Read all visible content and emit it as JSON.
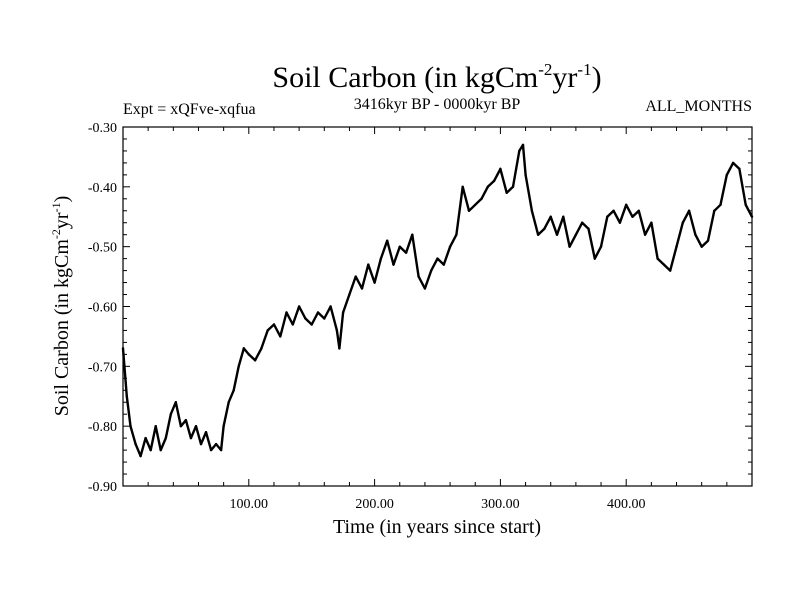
{
  "chart_data": {
    "type": "line",
    "title": {
      "base": "Soil Carbon (in kgCm",
      "exp1": "-2",
      "mid": "yr",
      "exp2": "-1",
      "end": ")"
    },
    "subtitle_left": "Expt = xQFve-xqfua",
    "subtitle_center": "3416kyr BP - 0000kyr BP",
    "subtitle_right": "ALL_MONTHS",
    "xlabel": "Time (in years since start)",
    "ylabel": {
      "base": "Soil Carbon (in kgCm",
      "exp1": "-2",
      "mid": "yr",
      "exp2": "-1",
      "end": ")"
    },
    "xlim": [
      0,
      500
    ],
    "ylim": [
      -0.9,
      -0.3
    ],
    "xticks": [
      100,
      200,
      300,
      400
    ],
    "xtick_labels": [
      "100.00",
      "200.00",
      "300.00",
      "400.00"
    ],
    "yticks": [
      -0.9,
      -0.8,
      -0.7,
      -0.6,
      -0.5,
      -0.4,
      -0.3
    ],
    "ytick_labels": [
      "-0.90",
      "-0.80",
      "-0.70",
      "-0.60",
      "-0.50",
      "-0.40",
      "-0.30"
    ],
    "grid": false,
    "series": [
      {
        "name": "Soil Carbon",
        "x": [
          0,
          3,
          6,
          10,
          14,
          18,
          22,
          26,
          30,
          34,
          38,
          42,
          46,
          50,
          54,
          58,
          62,
          66,
          70,
          74,
          78,
          80,
          84,
          88,
          92,
          96,
          100,
          105,
          110,
          115,
          120,
          125,
          130,
          135,
          140,
          145,
          150,
          155,
          160,
          165,
          170,
          172,
          175,
          180,
          185,
          190,
          195,
          200,
          205,
          210,
          215,
          220,
          225,
          230,
          235,
          240,
          245,
          250,
          255,
          260,
          265,
          270,
          275,
          280,
          285,
          290,
          295,
          300,
          305,
          310,
          315,
          318,
          320,
          325,
          330,
          335,
          340,
          345,
          350,
          355,
          360,
          365,
          370,
          375,
          380,
          385,
          390,
          395,
          400,
          405,
          410,
          415,
          420,
          425,
          430,
          435,
          440,
          445,
          450,
          455,
          460,
          465,
          470,
          475,
          480,
          485,
          490,
          495,
          500
        ],
        "y": [
          -0.67,
          -0.75,
          -0.8,
          -0.83,
          -0.85,
          -0.82,
          -0.84,
          -0.8,
          -0.84,
          -0.82,
          -0.78,
          -0.76,
          -0.8,
          -0.79,
          -0.82,
          -0.8,
          -0.83,
          -0.81,
          -0.84,
          -0.83,
          -0.84,
          -0.8,
          -0.76,
          -0.74,
          -0.7,
          -0.67,
          -0.68,
          -0.69,
          -0.67,
          -0.64,
          -0.63,
          -0.65,
          -0.61,
          -0.63,
          -0.6,
          -0.62,
          -0.63,
          -0.61,
          -0.62,
          -0.6,
          -0.64,
          -0.67,
          -0.61,
          -0.58,
          -0.55,
          -0.57,
          -0.53,
          -0.56,
          -0.52,
          -0.49,
          -0.53,
          -0.5,
          -0.51,
          -0.48,
          -0.55,
          -0.57,
          -0.54,
          -0.52,
          -0.53,
          -0.5,
          -0.48,
          -0.4,
          -0.44,
          -0.43,
          -0.42,
          -0.4,
          -0.39,
          -0.37,
          -0.41,
          -0.4,
          -0.34,
          -0.33,
          -0.38,
          -0.44,
          -0.48,
          -0.47,
          -0.45,
          -0.48,
          -0.45,
          -0.5,
          -0.48,
          -0.46,
          -0.47,
          -0.52,
          -0.5,
          -0.45,
          -0.44,
          -0.46,
          -0.43,
          -0.45,
          -0.44,
          -0.48,
          -0.46,
          -0.52,
          -0.53,
          -0.54,
          -0.5,
          -0.46,
          -0.44,
          -0.48,
          -0.5,
          -0.49,
          -0.44,
          -0.43,
          -0.38,
          -0.36,
          -0.37,
          -0.43,
          -0.45
        ]
      }
    ]
  }
}
